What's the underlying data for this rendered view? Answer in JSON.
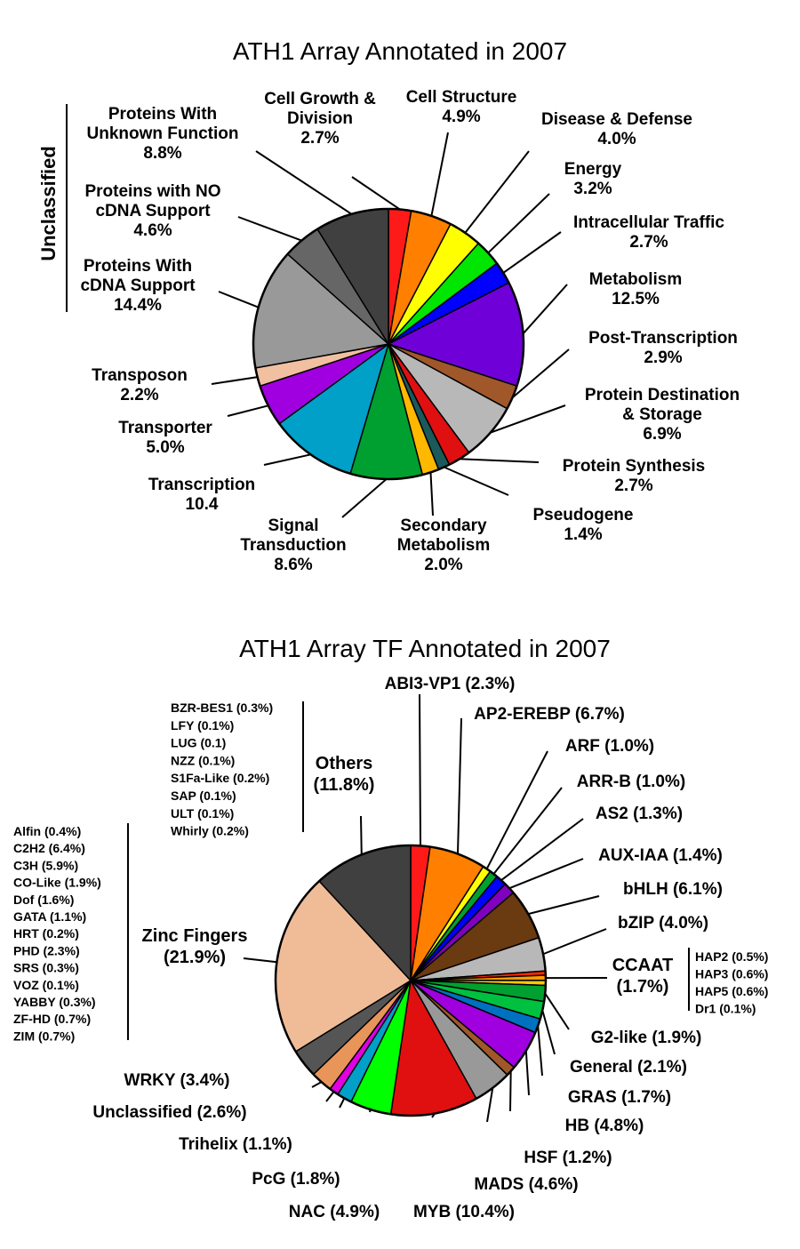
{
  "chart_data": [
    {
      "type": "pie",
      "title": "ATH1 Array Annotated in 2007",
      "group_label": "Unclassified",
      "slices": [
        {
          "name": "Cell Growth & Division",
          "lines": [
            "Cell Growth &",
            "Division"
          ],
          "pct_text": "2.7%",
          "value": 2.7,
          "color": "#ff1a1a"
        },
        {
          "name": "Cell Structure",
          "lines": [
            "Cell Structure"
          ],
          "pct_text": "4.9%",
          "value": 4.9,
          "color": "#ff7f00"
        },
        {
          "name": "Disease & Defense",
          "lines": [
            "Disease & Defense"
          ],
          "pct_text": "4.0%",
          "value": 4.0,
          "color": "#ffff00"
        },
        {
          "name": "Energy",
          "lines": [
            "Energy"
          ],
          "pct_text": "3.2%",
          "value": 3.2,
          "color": "#00e600"
        },
        {
          "name": "Intracellular Traffic",
          "lines": [
            "Intracellular Traffic"
          ],
          "pct_text": "2.7%",
          "value": 2.7,
          "color": "#0000ff"
        },
        {
          "name": "Metabolism",
          "lines": [
            "Metabolism"
          ],
          "pct_text": "12.5%",
          "value": 12.5,
          "color": "#7000d8"
        },
        {
          "name": "Post-Transcription",
          "lines": [
            "Post-Transcription"
          ],
          "pct_text": "2.9%",
          "value": 2.9,
          "color": "#a0582a"
        },
        {
          "name": "Protein Destination & Storage",
          "lines": [
            "Protein Destination",
            "& Storage"
          ],
          "pct_text": "6.9%",
          "value": 6.9,
          "color": "#b8b8b8"
        },
        {
          "name": "Protein Synthesis",
          "lines": [
            "Protein Synthesis"
          ],
          "pct_text": "2.7%",
          "value": 2.7,
          "color": "#e01010"
        },
        {
          "name": "Pseudogene",
          "lines": [
            "Pseudogene"
          ],
          "pct_text": "1.4%",
          "value": 1.4,
          "color": "#1a5a5a"
        },
        {
          "name": "Secondary Metabolism",
          "lines": [
            "Secondary",
            "Metabolism"
          ],
          "pct_text": "2.0%",
          "value": 2.0,
          "color": "#ffb800"
        },
        {
          "name": "Signal Transduction",
          "lines": [
            "Signal",
            "Transduction"
          ],
          "pct_text": "8.6%",
          "value": 8.6,
          "color": "#00a030"
        },
        {
          "name": "Transcription",
          "lines": [
            "Transcription"
          ],
          "pct_text": "10.4",
          "value": 10.4,
          "color": "#00a0c8"
        },
        {
          "name": "Transporter",
          "lines": [
            "Transporter"
          ],
          "pct_text": "5.0%",
          "value": 5.0,
          "color": "#a000e0"
        },
        {
          "name": "Transposon",
          "lines": [
            "Transposon"
          ],
          "pct_text": "2.2%",
          "value": 2.2,
          "color": "#f0c0a0"
        },
        {
          "name": "Proteins With cDNA Support",
          "lines": [
            "Proteins With",
            "cDNA Support"
          ],
          "pct_text": "14.4%",
          "value": 14.4,
          "color": "#999999"
        },
        {
          "name": "Proteins with NO cDNA Support",
          "lines": [
            "Proteins with NO",
            "cDNA Support"
          ],
          "pct_text": "4.6%",
          "value": 4.6,
          "color": "#666666"
        },
        {
          "name": "Proteins With Unknown Function",
          "lines": [
            "Proteins With",
            "Unknown Function"
          ],
          "pct_text": "8.8%",
          "value": 8.8,
          "color": "#404040"
        }
      ]
    },
    {
      "type": "pie",
      "title": "ATH1 Array TF Annotated in 2007",
      "slices": [
        {
          "name": "ABI3-VP1",
          "label": "ABI3-VP1 (2.3%)",
          "value": 2.3,
          "color": "#ff1a1a"
        },
        {
          "name": "AP2-EREBP",
          "label": "AP2-EREBP (6.7%)",
          "value": 6.7,
          "color": "#ff7f00"
        },
        {
          "name": "ARF",
          "label": "ARF (1.0%)",
          "value": 1.0,
          "color": "#ffff00"
        },
        {
          "name": "ARR-B",
          "label": "ARR-B (1.0%)",
          "value": 1.0,
          "color": "#00a030"
        },
        {
          "name": "AS2",
          "label": "AS2 (1.3%)",
          "value": 1.3,
          "color": "#0000ff"
        },
        {
          "name": "AUX-IAA",
          "label": "AUX-IAA (1.4%)",
          "value": 1.4,
          "color": "#8000c0"
        },
        {
          "name": "bHLH",
          "label": "bHLH (6.1%)",
          "value": 6.1,
          "color": "#6a3a10"
        },
        {
          "name": "bZIP",
          "label": "bZIP (4.0%)",
          "value": 4.0,
          "color": "#b8b8b8"
        },
        {
          "name": "CCAAT-HAP2",
          "label": "",
          "value": 0.5,
          "color": "#ff2a00"
        },
        {
          "name": "CCAAT-HAP3",
          "label": "",
          "value": 0.6,
          "color": "#ff9900"
        },
        {
          "name": "CCAAT-HAP5",
          "label": "",
          "value": 0.6,
          "color": "#ffc800"
        },
        {
          "name": "G2-like",
          "label": "G2-like (1.9%)",
          "value": 1.9,
          "color": "#00a030"
        },
        {
          "name": "General",
          "label": "General (2.1%)",
          "value": 2.1,
          "color": "#00c040"
        },
        {
          "name": "GRAS",
          "label": "GRAS (1.7%)",
          "value": 1.7,
          "color": "#0070c0"
        },
        {
          "name": "HB",
          "label": "HB (4.8%)",
          "value": 4.8,
          "color": "#a000e0"
        },
        {
          "name": "HSF",
          "label": "HSF (1.2%)",
          "value": 1.2,
          "color": "#a0582a"
        },
        {
          "name": "MADS",
          "label": "MADS (4.6%)",
          "value": 4.6,
          "color": "#999999"
        },
        {
          "name": "MYB",
          "label": "MYB (10.4%)",
          "value": 10.4,
          "color": "#e01010"
        },
        {
          "name": "NAC",
          "label": "NAC (4.9%)",
          "value": 4.9,
          "color": "#00ff00"
        },
        {
          "name": "PcG",
          "label": "PcG (1.8%)",
          "value": 1.8,
          "color": "#00a0c8"
        },
        {
          "name": "Trihelix",
          "label": "Trihelix (1.1%)",
          "value": 1.1,
          "color": "#e000e0"
        },
        {
          "name": "Unclassified",
          "label": "Unclassified (2.6%)",
          "value": 2.6,
          "color": "#e8955a"
        },
        {
          "name": "WRKY",
          "label": "WRKY (3.4%)",
          "value": 3.4,
          "color": "#555555"
        },
        {
          "name": "Zinc Fingers",
          "label": "",
          "value": 21.9,
          "color": "#f0bc98"
        },
        {
          "name": "Others",
          "label": "",
          "value": 11.8,
          "color": "#404040"
        }
      ],
      "ccaat": {
        "lines": [
          "CCAAT",
          "(1.7%)"
        ],
        "members": [
          "HAP2 (0.5%)",
          "HAP3 (0.6%)",
          "HAP5 (0.6%)",
          "Dr1 (0.1%)"
        ]
      },
      "others": {
        "lines": [
          "Others",
          "(11.8%)"
        ],
        "members": [
          "BZR-BES1 (0.3%)",
          "LFY (0.1%)",
          "LUG (0.1)",
          "NZZ (0.1%)",
          "S1Fa-Like (0.2%)",
          "SAP (0.1%)",
          "ULT (0.1%)",
          "Whirly (0.2%)"
        ]
      },
      "zinc": {
        "lines": [
          "Zinc Fingers",
          "(21.9%)"
        ],
        "members": [
          "Alfin (0.4%)",
          "C2H2 (6.4%)",
          "C3H (5.9%)",
          "CO-Like (1.9%)",
          "Dof (1.6%)",
          "GATA (1.1%)",
          "HRT (0.2%)",
          "PHD (2.3%)",
          "SRS (0.3%)",
          "VOZ (0.1%)",
          "YABBY (0.3%)",
          "ZF-HD (0.7%)",
          "ZIM (0.7%)"
        ]
      }
    }
  ]
}
